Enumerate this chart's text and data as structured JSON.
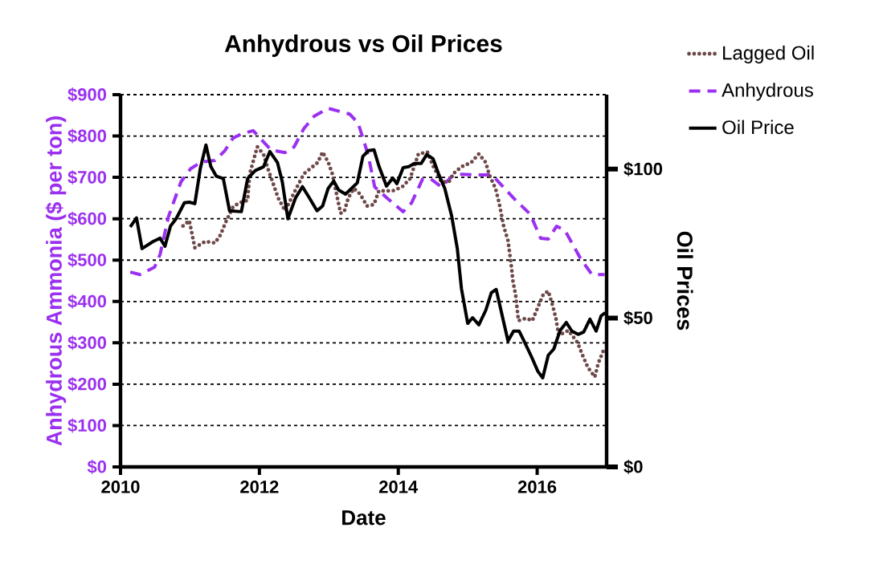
{
  "chart_data": {
    "type": "line",
    "title": "Anhydrous vs Oil Prices",
    "xlabel": "Date",
    "ylabel": "Anhydrous Ammonia ($ per ton)",
    "y2label": "Oil Prices",
    "xlim": [
      2010,
      2017
    ],
    "xticks": [
      2010,
      2012,
      2014,
      2016
    ],
    "ylim": [
      0,
      900
    ],
    "yticks": [
      {
        "value": 0,
        "label": "$0"
      },
      {
        "value": 100,
        "label": "$100"
      },
      {
        "value": 200,
        "label": "$200"
      },
      {
        "value": 300,
        "label": "$300"
      },
      {
        "value": 400,
        "label": "$400"
      },
      {
        "value": 500,
        "label": "$500"
      },
      {
        "value": 600,
        "label": "$600"
      },
      {
        "value": 700,
        "label": "$700"
      },
      {
        "value": 800,
        "label": "$800"
      },
      {
        "value": 900,
        "label": "$900"
      }
    ],
    "y2lim": [
      0,
      125
    ],
    "y2ticks": [
      {
        "value": 0,
        "label": "$0"
      },
      {
        "value": 50,
        "label": "$50"
      },
      {
        "value": 100,
        "label": "$100"
      }
    ],
    "grid": "y",
    "legend": "top right",
    "marker": "none",
    "series": [
      {
        "name": "Lagged Oil",
        "color": "#6e4848",
        "line_style": "dotted",
        "axis": "y2",
        "x": [
          2010.9,
          2010.99,
          2011.03,
          2011.07,
          2011.22,
          2011.36,
          2011.44,
          2011.51,
          2011.62,
          2011.71,
          2011.83,
          2011.86,
          2011.97,
          2012.06,
          2012.12,
          2012.17,
          2012.27,
          2012.37,
          2012.52,
          2012.64,
          2012.84,
          2012.91,
          2012.99,
          2013.05,
          2013.13,
          2013.17,
          2013.22,
          2013.28,
          2013.36,
          2013.45,
          2013.55,
          2013.65,
          2013.72,
          2013.92,
          2014.06,
          2014.17,
          2014.29,
          2014.42,
          2014.5,
          2014.62,
          2014.73,
          2014.79,
          2014.91,
          2015.05,
          2015.16,
          2015.26,
          2015.31,
          2015.4,
          2015.45,
          2015.52,
          2015.58,
          2015.63,
          2015.65,
          2015.69,
          2015.73,
          2015.84,
          2015.93,
          2016.01,
          2016.09,
          2016.16,
          2016.22,
          2016.27,
          2016.31,
          2016.45,
          2016.58,
          2016.65,
          2016.73,
          2016.83,
          2016.88,
          2016.95
        ],
        "values": [
          80.9,
          82.7,
          78.2,
          73.6,
          75.7,
          75.2,
          77.9,
          81.9,
          87.3,
          88.7,
          89.5,
          98.4,
          107.5,
          104.9,
          100.3,
          97.0,
          90.3,
          86.0,
          93.0,
          98.4,
          102.2,
          105.7,
          102.4,
          98.4,
          89.5,
          85.2,
          85.6,
          90.3,
          93.5,
          91.6,
          87.6,
          88.1,
          92.7,
          92.7,
          94.1,
          96.8,
          105.1,
          105.7,
          101.1,
          95.7,
          95.7,
          98.4,
          100.8,
          102.2,
          105.1,
          102.2,
          98.1,
          93.5,
          88.9,
          80.6,
          76.0,
          67.1,
          62.5,
          57.7,
          49.1,
          49.9,
          49.1,
          53.6,
          58.0,
          59.0,
          54.4,
          49.9,
          44.2,
          45.8,
          41.8,
          37.7,
          33.4,
          30.2,
          34.8,
          38.8
        ]
      },
      {
        "name": "Anhydrous",
        "color": "#9b30f0",
        "line_style": "dashed",
        "x": [
          2010.14,
          2010.28,
          2010.49,
          2010.57,
          2010.69,
          2010.87,
          2011.01,
          2011.16,
          2011.36,
          2011.5,
          2011.62,
          2011.74,
          2011.91,
          2012.02,
          2012.17,
          2012.37,
          2012.5,
          2012.64,
          2012.79,
          2012.99,
          2013.3,
          2013.42,
          2013.51,
          2013.57,
          2013.66,
          2013.84,
          2014.07,
          2014.19,
          2014.35,
          2014.47,
          2014.62,
          2014.81,
          2015.16,
          2015.35,
          2015.51,
          2015.66,
          2015.9,
          2016.05,
          2016.16,
          2016.28,
          2016.4,
          2016.63,
          2016.79,
          2016.97
        ],
        "values": [
          471,
          465,
          483,
          514,
          605,
          689,
          721,
          737,
          741,
          764,
          795,
          805,
          813,
          793,
          766,
          760,
          774,
          818,
          848,
          867,
          853,
          832,
          785,
          751,
          677,
          650,
          617,
          638,
          696,
          696,
          677,
          708,
          706,
          706,
          677,
          650,
          611,
          553,
          551,
          582,
          572,
          502,
          465,
          465
        ]
      },
      {
        "name": "Oil Price",
        "color": "#000000",
        "line_style": "solid",
        "axis": "y2",
        "x": [
          2010.14,
          2010.23,
          2010.31,
          2010.47,
          2010.57,
          2010.64,
          2010.72,
          2010.8,
          2010.92,
          2010.99,
          2011.07,
          2011.15,
          2011.23,
          2011.3,
          2011.38,
          2011.48,
          2011.57,
          2011.74,
          2011.83,
          2011.94,
          2012.06,
          2012.15,
          2012.26,
          2012.33,
          2012.41,
          2012.52,
          2012.62,
          2012.72,
          2012.83,
          2012.91,
          2012.99,
          2013.07,
          2013.14,
          2013.24,
          2013.41,
          2013.49,
          2013.57,
          2013.65,
          2013.72,
          2013.83,
          2013.92,
          2013.98,
          2014.07,
          2014.15,
          2014.23,
          2014.33,
          2014.41,
          2014.5,
          2014.58,
          2014.67,
          2014.77,
          2014.85,
          2014.91,
          2015.0,
          2015.07,
          2015.16,
          2015.26,
          2015.34,
          2015.41,
          2015.58,
          2015.66,
          2015.74,
          2015.81,
          2015.92,
          2016.01,
          2016.08,
          2016.16,
          2016.24,
          2016.33,
          2016.42,
          2016.5,
          2016.59,
          2016.67,
          2016.76,
          2016.85,
          2016.92,
          2016.98
        ],
        "values": [
          80.6,
          83.6,
          73.3,
          75.7,
          76.8,
          74.1,
          80.9,
          83.3,
          88.7,
          88.9,
          88.4,
          100.3,
          108.1,
          100.9,
          97.6,
          96.8,
          86.0,
          85.7,
          96.8,
          99.5,
          100.8,
          105.9,
          102.2,
          95.7,
          83.3,
          90.3,
          94.1,
          90.3,
          86.0,
          87.6,
          93.5,
          96.0,
          93.0,
          91.6,
          95.4,
          104.3,
          106.2,
          106.5,
          101.1,
          94.3,
          97.0,
          95.1,
          100.5,
          100.8,
          101.9,
          101.9,
          104.9,
          103.5,
          98.4,
          93.5,
          84.1,
          73.3,
          59.8,
          48.2,
          50.1,
          47.7,
          52.6,
          58.5,
          59.6,
          42.3,
          45.6,
          45.6,
          42.3,
          36.9,
          32.1,
          29.9,
          37.5,
          39.6,
          45.8,
          48.5,
          45.6,
          44.5,
          45.3,
          49.6,
          45.6,
          50.7,
          51.8
        ]
      }
    ]
  }
}
